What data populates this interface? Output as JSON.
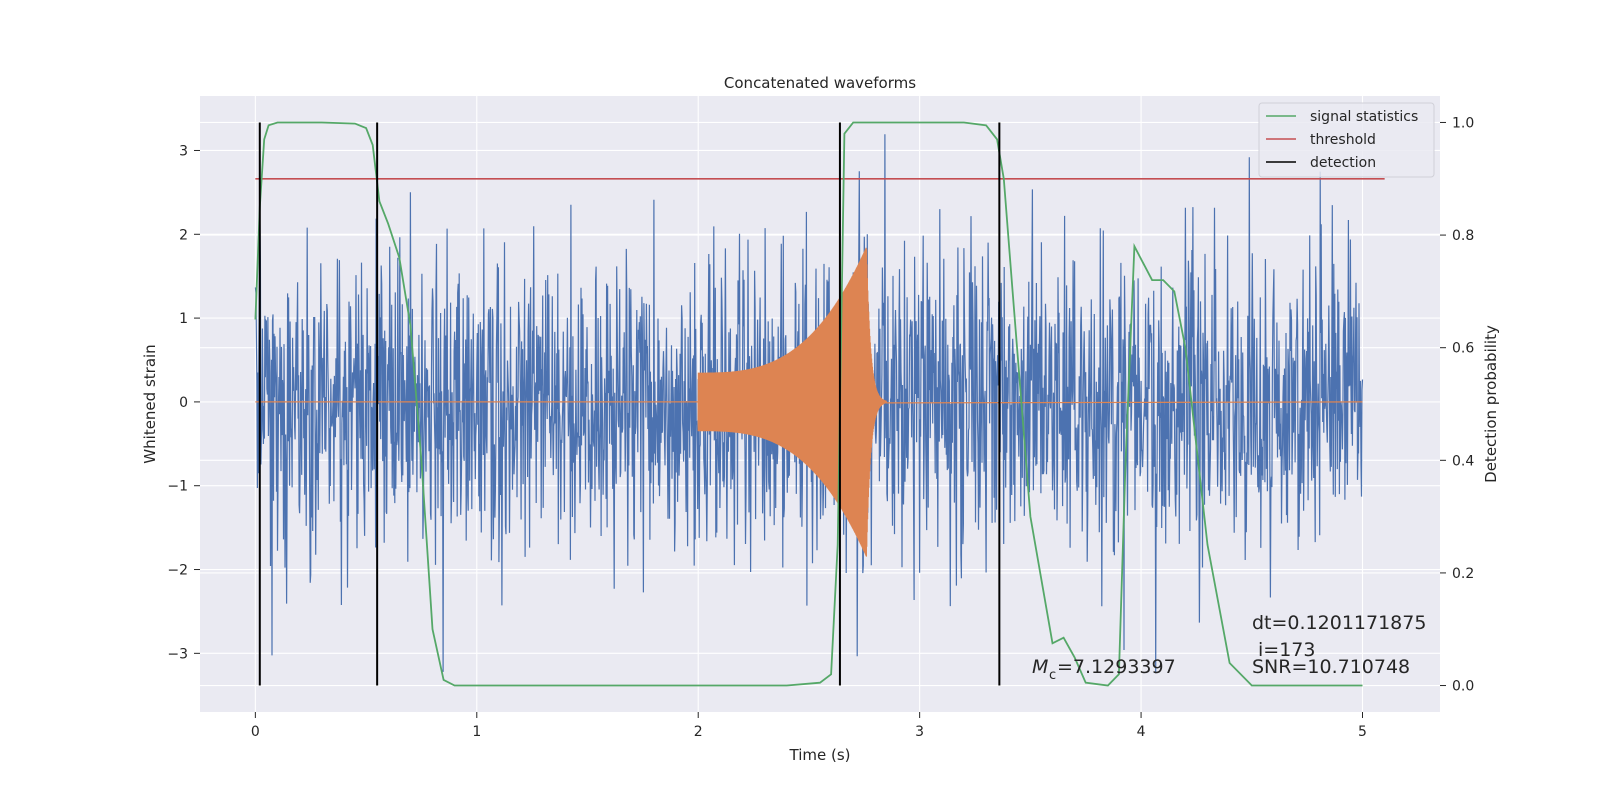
{
  "chart_data": {
    "type": "line",
    "title": "Concatenated waveforms",
    "xlabel": "Time (s)",
    "ylabel": "Whitened strain",
    "y2label": "Detection probability",
    "xlim": [
      -0.25,
      5.35
    ],
    "ylim": [
      -3.7,
      3.65
    ],
    "y2lim": [
      -0.047,
      1.047
    ],
    "x_ticks": [
      0,
      1,
      2,
      3,
      4,
      5
    ],
    "x_tick_labels": [
      "0",
      "1",
      "2",
      "3",
      "4",
      "5"
    ],
    "y_ticks": [
      -3,
      -2,
      -1,
      0,
      1,
      2,
      3
    ],
    "y_tick_labels": [
      "−3",
      "−2",
      "−1",
      "0",
      "1",
      "2",
      "3"
    ],
    "y2_ticks": [
      0.0,
      0.2,
      0.4,
      0.6,
      0.8,
      1.0
    ],
    "y2_tick_labels": [
      "0.0",
      "0.2",
      "0.4",
      "0.6",
      "0.8",
      "1.0"
    ],
    "grid": true,
    "legend_position": "top-right",
    "legend": [
      "signal statistics",
      "threshold",
      "detection"
    ],
    "colors": {
      "strain": "#4c72b0",
      "template": "#dd8452",
      "signal_statistics": "#55a868",
      "threshold": "#c44e52",
      "detection": "#000000",
      "plot_background": "#eaeaf2",
      "grid": "#ffffff"
    },
    "series": [
      {
        "name": "signal statistics",
        "axis": "right",
        "x": [
          0.0,
          0.02,
          0.04,
          0.06,
          0.1,
          0.2,
          0.3,
          0.45,
          0.5,
          0.53,
          0.56,
          0.6,
          0.65,
          0.7,
          0.75,
          0.8,
          0.85,
          0.9,
          1.5,
          2.0,
          2.4,
          2.55,
          2.6,
          2.63,
          2.66,
          2.7,
          2.8,
          3.0,
          3.2,
          3.3,
          3.35,
          3.38,
          3.42,
          3.5,
          3.6,
          3.65,
          3.7,
          3.75,
          3.85,
          3.9,
          3.93,
          3.97,
          4.05,
          4.1,
          4.15,
          4.2,
          4.3,
          4.4,
          4.5,
          5.0
        ],
        "y": [
          0.65,
          0.85,
          0.97,
          0.995,
          1.0,
          1.0,
          1.0,
          0.998,
          0.99,
          0.96,
          0.86,
          0.82,
          0.76,
          0.64,
          0.4,
          0.1,
          0.01,
          0.0,
          0.0,
          0.0,
          0.0,
          0.005,
          0.02,
          0.25,
          0.98,
          1.0,
          1.0,
          1.0,
          1.0,
          0.995,
          0.97,
          0.9,
          0.7,
          0.3,
          0.075,
          0.085,
          0.05,
          0.005,
          0.0,
          0.02,
          0.4,
          0.78,
          0.72,
          0.72,
          0.7,
          0.6,
          0.25,
          0.04,
          0.0,
          0.0
        ]
      },
      {
        "name": "threshold",
        "axis": "right",
        "x": [
          0.0,
          5.1
        ],
        "y": [
          0.9,
          0.9
        ]
      },
      {
        "name": "detection",
        "axis": "right",
        "lines_at_x": [
          0.02,
          0.55,
          2.64,
          3.36
        ],
        "y_range": [
          0.0,
          1.0
        ]
      },
      {
        "name": "",
        "axis": "left",
        "kind": "noise",
        "x_range": [
          0.0,
          5.0
        ],
        "approx_amplitude": 0.9,
        "approx_peak_min": -3.4,
        "approx_peak_max": 3.3
      },
      {
        "name": "",
        "axis": "left",
        "kind": "chirp",
        "x_range": [
          0.0,
          5.0
        ],
        "chirp_start": 2.0,
        "merger_time": 2.76,
        "ringdown_end": 2.85,
        "start_amplitude": 0.35,
        "peak_amplitude": 1.85
      }
    ],
    "annotations": {
      "dt": "dt=0.1201171875",
      "i": "i=173",
      "snr": "SNR=10.710748",
      "mc_value": "=7.1293397",
      "mc_symbol": "M",
      "mc_subscript": "c"
    }
  }
}
